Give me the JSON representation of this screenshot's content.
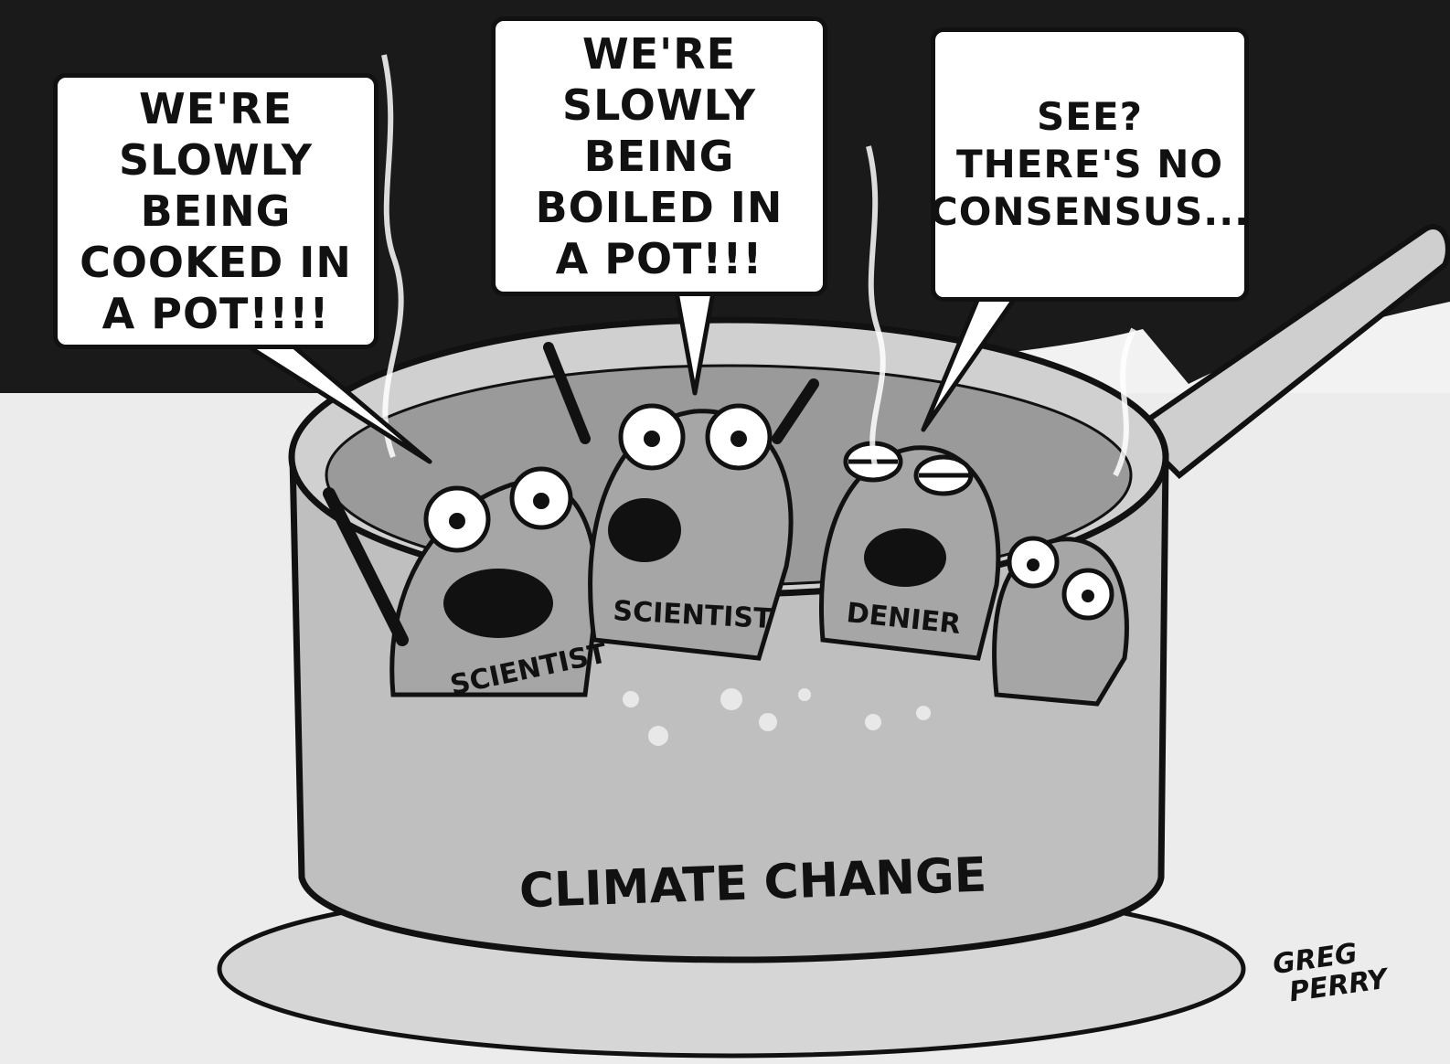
{
  "speech_bubbles": {
    "left": "WE'RE\nSLOWLY BEING\nCOOKED IN\nA POT!!!!",
    "middle": "WE'RE\nSLOWLY BEING\nBOILED IN\nA POT!!!",
    "right": "SEE?\nTHERE'S NO\nCONSENSUS..."
  },
  "frog_labels": {
    "frog1": "SCIENTIST",
    "frog2": "SCIENTIST",
    "frog3": "DENIER"
  },
  "pot_label": "CLIMATE CHANGE",
  "signature": {
    "line1": "GREG",
    "line2": "PERRY"
  },
  "colors": {
    "background": "#f2f2f2",
    "dark_hatch": "#1a1a1a",
    "pot": "#bfbfbf",
    "water": "#9a9a9a",
    "frog": "#a6a6a6",
    "ink": "#111111"
  }
}
